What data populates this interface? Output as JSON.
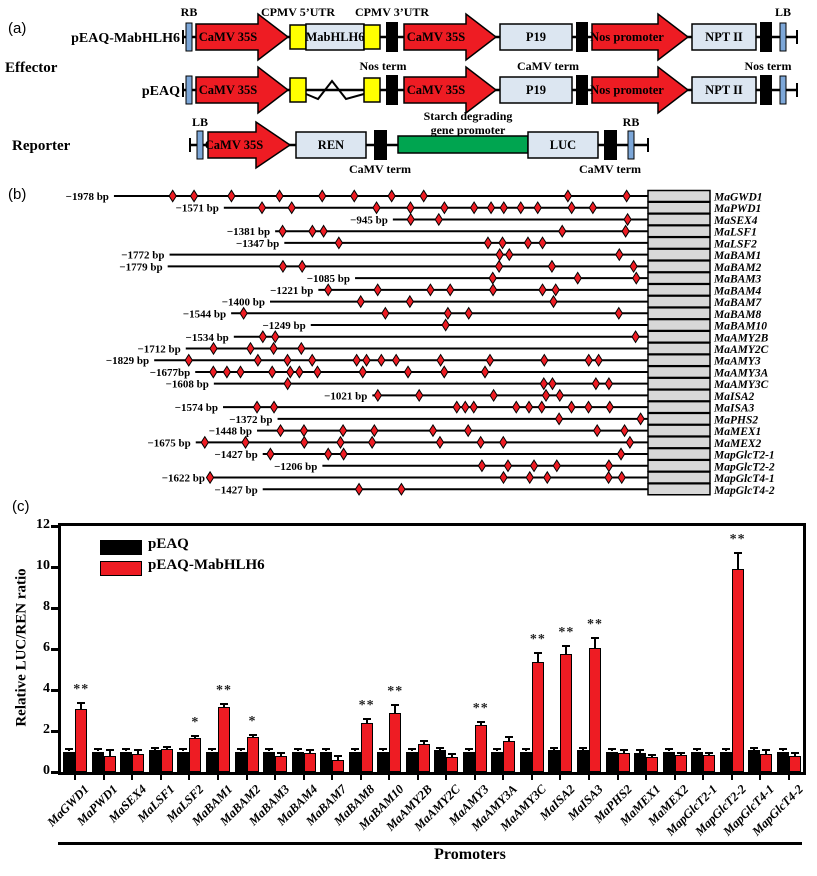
{
  "panels": {
    "a_label": "(a)",
    "b_label": "(b)",
    "c_label": "(c)"
  },
  "panel_a": {
    "effector_label": "Effector",
    "reporter_label": "Reporter",
    "construct1_name": "pEAQ-MabHLH6",
    "construct2_name": "pEAQ",
    "rb_label": "RB",
    "lb_label": "LB",
    "cpmv5_label": "CPMV 5’UTR",
    "cpmv3_label": "CPMV 3’UTR",
    "nos_term_label": "Nos term",
    "camv_term_label": "CaMV term",
    "camv35s_label": "CaMV 35S",
    "mabhlh6_label": "MabHLH6",
    "p19_label": "P19",
    "nos_promoter_label": "Nos promoter",
    "nptii_label": "NPT II",
    "ren_label": "REN",
    "luc_label": "LUC",
    "starch_label_line1": "Starch degrading",
    "starch_label_line2": "gene promoter",
    "colors": {
      "arrow_red": "#ee1c23",
      "utr_yellow": "#ffff00",
      "gene_box_blue": "#dce6f1",
      "promoter_green": "#00a550",
      "border_bar_blue": "#7da7d8",
      "terminator_black": "#000000"
    }
  },
  "panel_b": {
    "site_color": "#ee1c23",
    "gene_box_color": "#d8d8d8",
    "rows": [
      {
        "length_label": "−1978 bp",
        "bp": 1978,
        "gene": "MaGWD1",
        "sites": [
          0.11,
          0.15,
          0.22,
          0.31,
          0.39,
          0.45,
          0.52,
          0.58,
          0.85,
          0.96
        ]
      },
      {
        "length_label": "−1571 bp",
        "bp": 1571,
        "gene": "MaPWD1",
        "sites": [
          0.09,
          0.16,
          0.36,
          0.44,
          0.52,
          0.59,
          0.63,
          0.66,
          0.7,
          0.74,
          0.82,
          0.87
        ]
      },
      {
        "length_label": "−945 bp",
        "bp": 945,
        "gene": "MaSEX4",
        "sites": [
          0.07,
          0.18,
          0.92
        ]
      },
      {
        "length_label": "−1381 bp",
        "bp": 1381,
        "gene": "MaLSF1",
        "sites": [
          0.02,
          0.1,
          0.13,
          0.77,
          0.94
        ]
      },
      {
        "length_label": "−1347 bp",
        "bp": 1347,
        "gene": "MaLSF2",
        "sites": [
          0.15,
          0.56,
          0.6,
          0.67,
          0.71
        ]
      },
      {
        "length_label": "−1772 bp",
        "bp": 1772,
        "gene": "MaBAM1",
        "sites": [
          0.69,
          0.71,
          0.94
        ]
      },
      {
        "length_label": "−1779 bp",
        "bp": 1779,
        "gene": "MaBAM2",
        "sites": [
          0.24,
          0.28,
          0.69,
          0.8,
          0.97
        ]
      },
      {
        "length_label": "−1085 bp",
        "bp": 1085,
        "gene": "MaBAM3",
        "sites": [
          0.47,
          0.76,
          0.96
        ]
      },
      {
        "length_label": "−1221 bp",
        "bp": 1221,
        "gene": "MaBAM4",
        "sites": [
          0.03,
          0.18,
          0.34,
          0.4,
          0.53,
          0.68,
          0.72
        ]
      },
      {
        "length_label": "−1400 bp",
        "bp": 1400,
        "gene": "MaBAM7",
        "sites": [
          0.24,
          0.37,
          0.75
        ]
      },
      {
        "length_label": "−1544 bp",
        "bp": 1544,
        "gene": "MaBAM8",
        "sites": [
          0.03,
          0.37,
          0.52,
          0.57,
          0.93
        ]
      },
      {
        "length_label": "−1249 bp",
        "bp": 1249,
        "gene": "MaBAM10",
        "sites": [
          0.4
        ]
      },
      {
        "length_label": "−1534 bp",
        "bp": 1534,
        "gene": "MaAMY2B",
        "sites": [
          0.07,
          0.1,
          0.97
        ]
      },
      {
        "length_label": "−1712 bp",
        "bp": 1712,
        "gene": "MaAMY2C",
        "sites": [
          0.06,
          0.14,
          0.19,
          0.25
        ]
      },
      {
        "length_label": "−1829 bp",
        "bp": 1829,
        "gene": "MaAMY3",
        "sites": [
          0.07,
          0.21,
          0.27,
          0.32,
          0.41,
          0.43,
          0.46,
          0.49,
          0.58,
          0.68,
          0.79,
          0.88,
          0.9
        ]
      },
      {
        "length_label": "−1677bp",
        "bp": 1677,
        "gene": "MaAMY3A",
        "sites": [
          0.04,
          0.07,
          0.1,
          0.17,
          0.21,
          0.23,
          0.27,
          0.37,
          0.47,
          0.55,
          0.64
        ]
      },
      {
        "length_label": "−1608 bp",
        "bp": 1608,
        "gene": "MaAMY3C",
        "sites": [
          0.17,
          0.76,
          0.78,
          0.88,
          0.91
        ]
      },
      {
        "length_label": "−1021 bp",
        "bp": 1021,
        "gene": "MaISA2",
        "sites": [
          0.02,
          0.17,
          0.44,
          0.63,
          0.68
        ]
      },
      {
        "length_label": "−1574 bp",
        "bp": 1574,
        "gene": "MaISA3",
        "sites": [
          0.08,
          0.12,
          0.55,
          0.57,
          0.59,
          0.69,
          0.72,
          0.75,
          0.82,
          0.86,
          0.91
        ]
      },
      {
        "length_label": "−1372 bp",
        "bp": 1372,
        "gene": "MaPHS2",
        "sites": [
          0.76,
          0.98
        ]
      },
      {
        "length_label": "−1448 bp",
        "bp": 1448,
        "gene": "MaMEX1",
        "sites": [
          0.06,
          0.12,
          0.22,
          0.3,
          0.45,
          0.54,
          0.87,
          0.94
        ]
      },
      {
        "length_label": "−1675 bp",
        "bp": 1675,
        "gene": "MaMEX2",
        "sites": [
          0.02,
          0.11,
          0.24,
          0.32,
          0.39,
          0.54,
          0.63,
          0.68,
          0.96
        ]
      },
      {
        "length_label": "−1427 bp",
        "bp": 1427,
        "gene": "MapGlcT2-1",
        "sites": [
          0.02,
          0.17,
          0.21,
          0.93
        ]
      },
      {
        "length_label": "−1206 bp",
        "bp": 1206,
        "gene": "MapGlcT2-2",
        "sites": [
          0.49,
          0.57,
          0.65,
          0.72,
          0.88
        ]
      },
      {
        "length_label": "−1622 bp",
        "bp": 1622,
        "gene": "MapGlcT4-1",
        "sites": [
          0.0,
          0.67,
          0.73,
          0.77,
          0.91,
          0.94
        ]
      },
      {
        "length_label": "−1427 bp",
        "bp": 1427,
        "gene": "MapGlcT4-2",
        "sites": [
          0.25,
          0.36
        ]
      }
    ]
  },
  "chart_data": {
    "type": "bar",
    "title": "",
    "ylabel": "Relative LUC/REN ratio",
    "xlabel": "Promoters",
    "ylim": [
      0,
      12
    ],
    "yticks": [
      0,
      2,
      4,
      6,
      8,
      10,
      12
    ],
    "grid": false,
    "legend_position": "top-left-inside",
    "categories": [
      "MaGWD1",
      "MaPWD1",
      "MaSEX4",
      "MaLSF1",
      "MaLSF2",
      "MaBAM1",
      "MaBAM2",
      "MaBAM3",
      "MaBAM4",
      "MaBAM7",
      "MaBAM8",
      "MaBAM10",
      "MaAMY2B",
      "MaAMY2C",
      "MaAMY3",
      "MaAMY3A",
      "MaAMY3C",
      "MaISA2",
      "MaISA3",
      "MaPHS2",
      "MaMEX1",
      "MaMEX2",
      "MapGlcT2-1",
      "MapGlcT2-2",
      "MapGlcT4-1",
      "MapGlcT4-2"
    ],
    "series": [
      {
        "name": "pEAQ",
        "color": "#000000",
        "values": [
          1.0,
          1.0,
          1.0,
          1.05,
          1.0,
          1.0,
          1.0,
          1.0,
          1.0,
          1.0,
          1.0,
          1.0,
          1.0,
          1.05,
          1.0,
          1.0,
          1.0,
          1.05,
          1.05,
          1.0,
          0.95,
          1.0,
          1.0,
          1.0,
          1.05,
          1.0
        ],
        "errors": [
          0.1,
          0.1,
          0.1,
          0.1,
          0.1,
          0.1,
          0.1,
          0.1,
          0.1,
          0.1,
          0.1,
          0.1,
          0.1,
          0.1,
          0.1,
          0.1,
          0.1,
          0.1,
          0.1,
          0.1,
          0.1,
          0.1,
          0.1,
          0.1,
          0.1,
          0.1
        ]
      },
      {
        "name": "pEAQ-MabHLH6",
        "color": "#ee1c23",
        "values": [
          3.05,
          0.8,
          0.9,
          1.1,
          1.65,
          3.15,
          1.7,
          0.8,
          0.95,
          0.6,
          2.4,
          2.9,
          1.35,
          0.75,
          2.3,
          1.5,
          5.35,
          5.75,
          6.05,
          0.95,
          0.75,
          0.85,
          0.85,
          9.9,
          0.9,
          0.8
        ],
        "errors": [
          0.3,
          0.25,
          0.15,
          0.1,
          0.12,
          0.15,
          0.12,
          0.15,
          0.1,
          0.2,
          0.2,
          0.35,
          0.15,
          0.12,
          0.15,
          0.2,
          0.45,
          0.4,
          0.5,
          0.12,
          0.1,
          0.1,
          0.1,
          0.8,
          0.15,
          0.15
        ]
      }
    ],
    "significance": [
      "**",
      "",
      "",
      "",
      "*",
      "**",
      "*",
      "",
      "",
      "",
      "**",
      "**",
      "",
      "",
      "**",
      "",
      "**",
      "**",
      "**",
      "",
      "",
      "",
      "",
      "**",
      "",
      ""
    ]
  }
}
